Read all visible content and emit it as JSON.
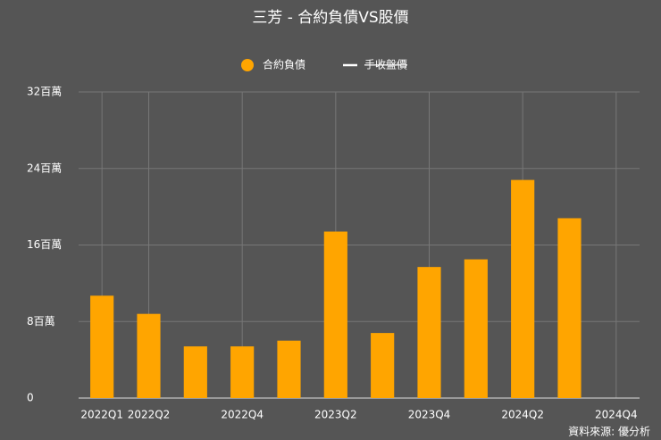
{
  "chart_data": {
    "type": "bar",
    "title": "三芳 - 合約負債VS股價",
    "categories": [
      "2022Q1",
      "2022Q2",
      null,
      "2022Q4",
      null,
      "2023Q2",
      null,
      "2023Q4",
      null,
      "2024Q2",
      null,
      "2024Q4"
    ],
    "series": [
      {
        "name": "合約負債",
        "color": "#ffa500",
        "values": [
          10.7,
          8.8,
          5.4,
          5.4,
          6.0,
          17.4,
          6.8,
          13.7,
          14.5,
          22.8,
          18.8,
          null
        ]
      },
      {
        "name": "手收盤價",
        "color": "#ffffff",
        "hidden": true,
        "values": [
          null,
          null,
          null,
          null,
          null,
          null,
          null,
          null,
          null,
          null,
          null,
          null
        ]
      }
    ],
    "ylim": [
      0,
      32
    ],
    "yticks": [
      0,
      {
        "value": 8,
        "label": "8百萬"
      },
      {
        "value": 16,
        "label": "16百萬"
      },
      {
        "value": 24,
        "label": "24百萬"
      },
      {
        "value": 32,
        "label": "32百萬"
      }
    ],
    "grid": true,
    "source": "資料來源: 優分析"
  }
}
